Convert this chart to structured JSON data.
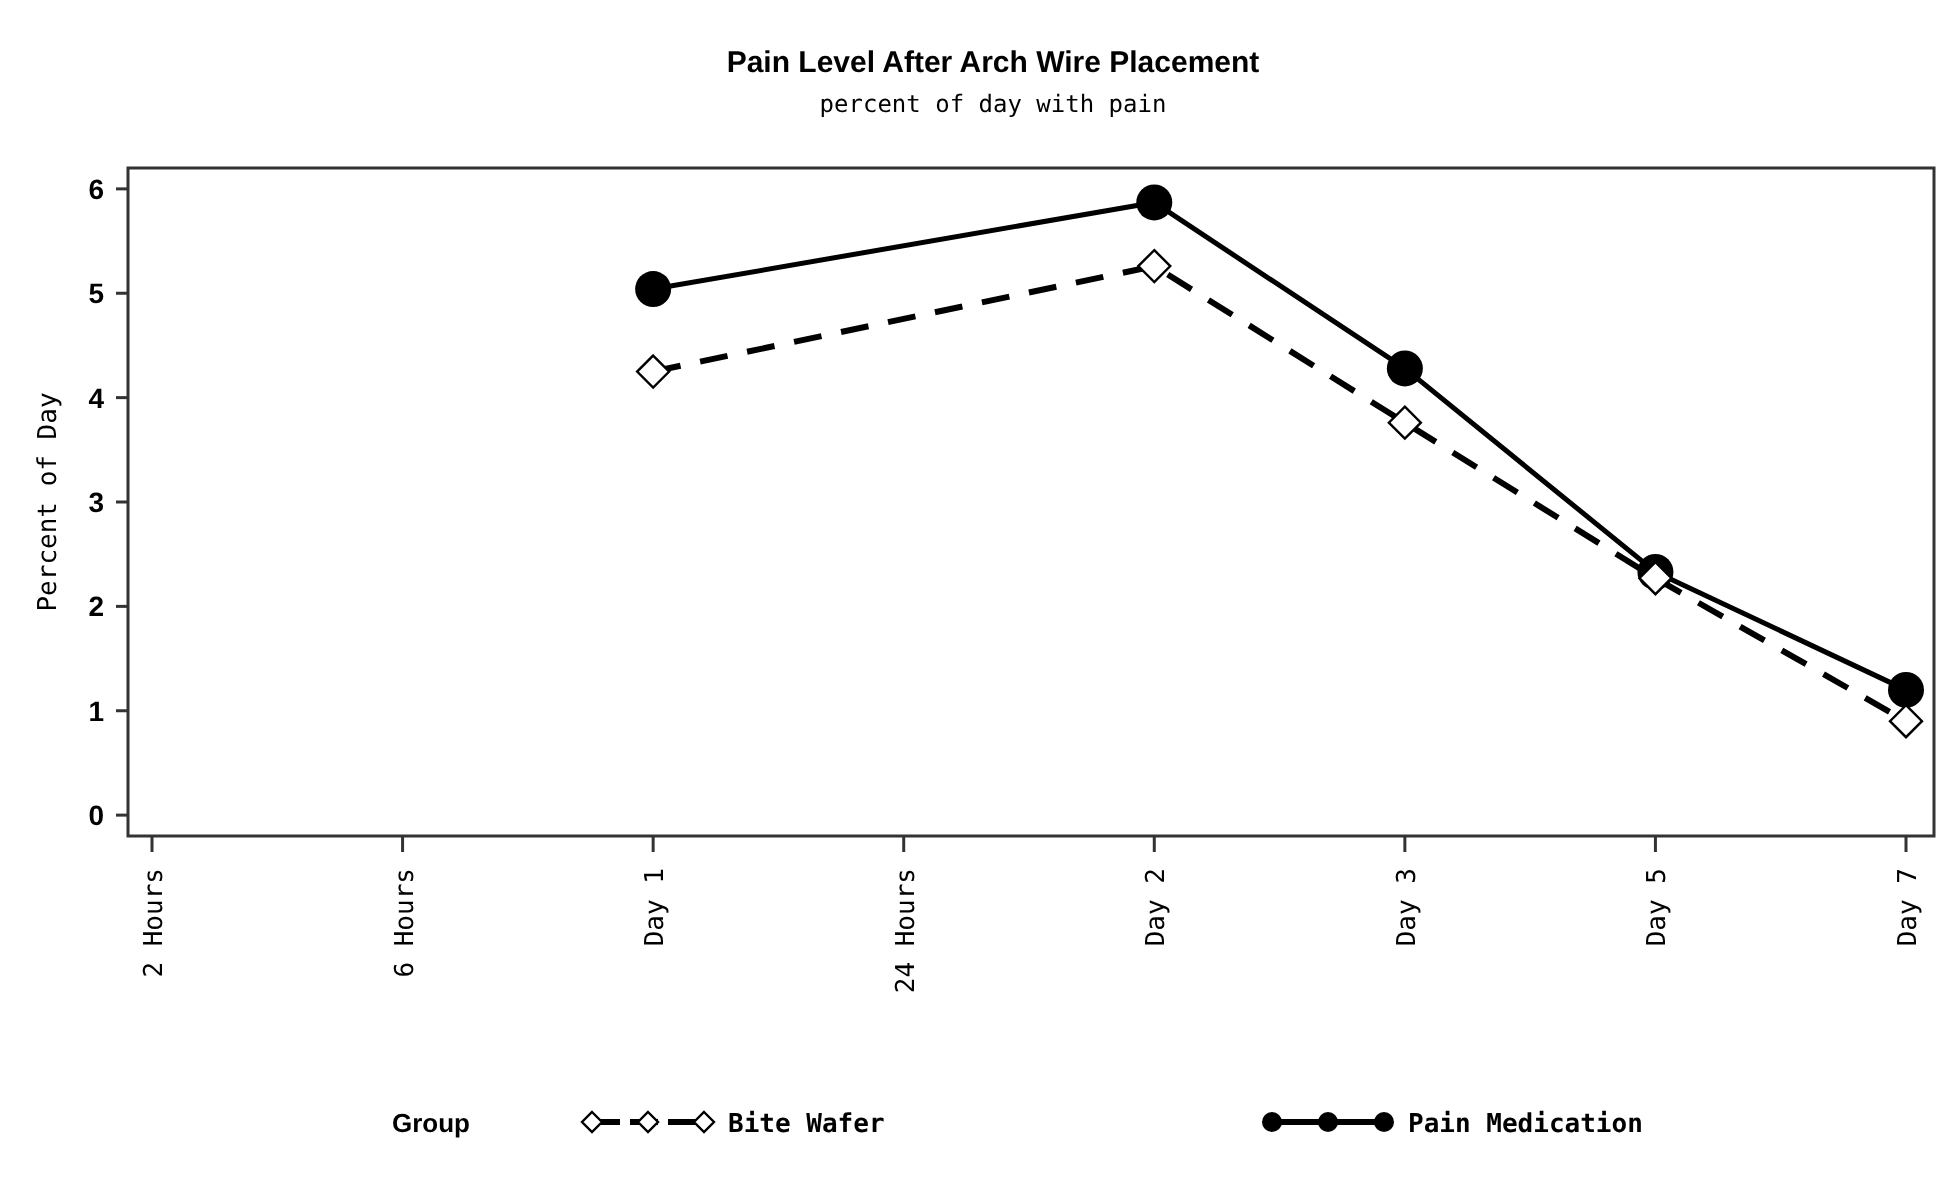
{
  "chart_data": {
    "type": "line",
    "title": "Pain Level After Arch Wire Placement",
    "subtitle": "percent of day with pain",
    "ylabel": "Percent of Day",
    "legend_title": "Group",
    "categories": [
      "2 Hours",
      "6 Hours",
      "Day 1",
      "24 Hours",
      "Day 2",
      "Day 3",
      "Day 5",
      "Day 7"
    ],
    "series": [
      {
        "name": "Bite Wafer",
        "color": "#000000",
        "marker": "diamond",
        "line_style": "dashed",
        "values": [
          null,
          null,
          4.25,
          null,
          5.26,
          3.76,
          2.27,
          0.9
        ]
      },
      {
        "name": "Pain Medication",
        "color": "#000000",
        "marker": "circle",
        "line_style": "solid",
        "values": [
          null,
          null,
          5.04,
          null,
          5.87,
          4.28,
          2.33,
          1.2
        ]
      }
    ],
    "ylim": [
      -0.2,
      6.2
    ],
    "yticks": [
      0,
      1,
      2,
      3,
      4,
      5,
      6
    ],
    "legend": "bottom"
  }
}
